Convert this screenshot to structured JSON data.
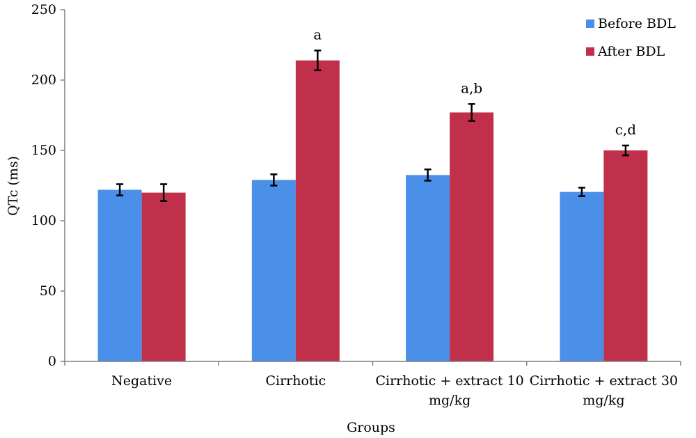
{
  "chart_data": {
    "type": "bar",
    "xlabel": "Groups",
    "ylabel": "QTc (ms)",
    "ylim": [
      0,
      250
    ],
    "yticks": [
      0,
      50,
      100,
      150,
      200,
      250
    ],
    "grid": false,
    "legend_position": "top-right",
    "categories": [
      [
        "Negative"
      ],
      [
        "Cirrhotic"
      ],
      [
        "Cirrhotic + extract 10",
        "mg/kg"
      ],
      [
        "Cirrhotic + extract 30",
        "mg/kg"
      ]
    ],
    "series": [
      {
        "name": "Before BDL",
        "color": "#4A90E8",
        "values": [
          122,
          129,
          132.5,
          120.5
        ],
        "errors": [
          4,
          4,
          4,
          3
        ]
      },
      {
        "name": "After BDL",
        "color": "#C0304B",
        "values": [
          120,
          214,
          177,
          150
        ],
        "errors": [
          6,
          7,
          6,
          3.5
        ]
      }
    ],
    "annotations": [
      "",
      "a",
      "a,b",
      "c,d"
    ]
  }
}
